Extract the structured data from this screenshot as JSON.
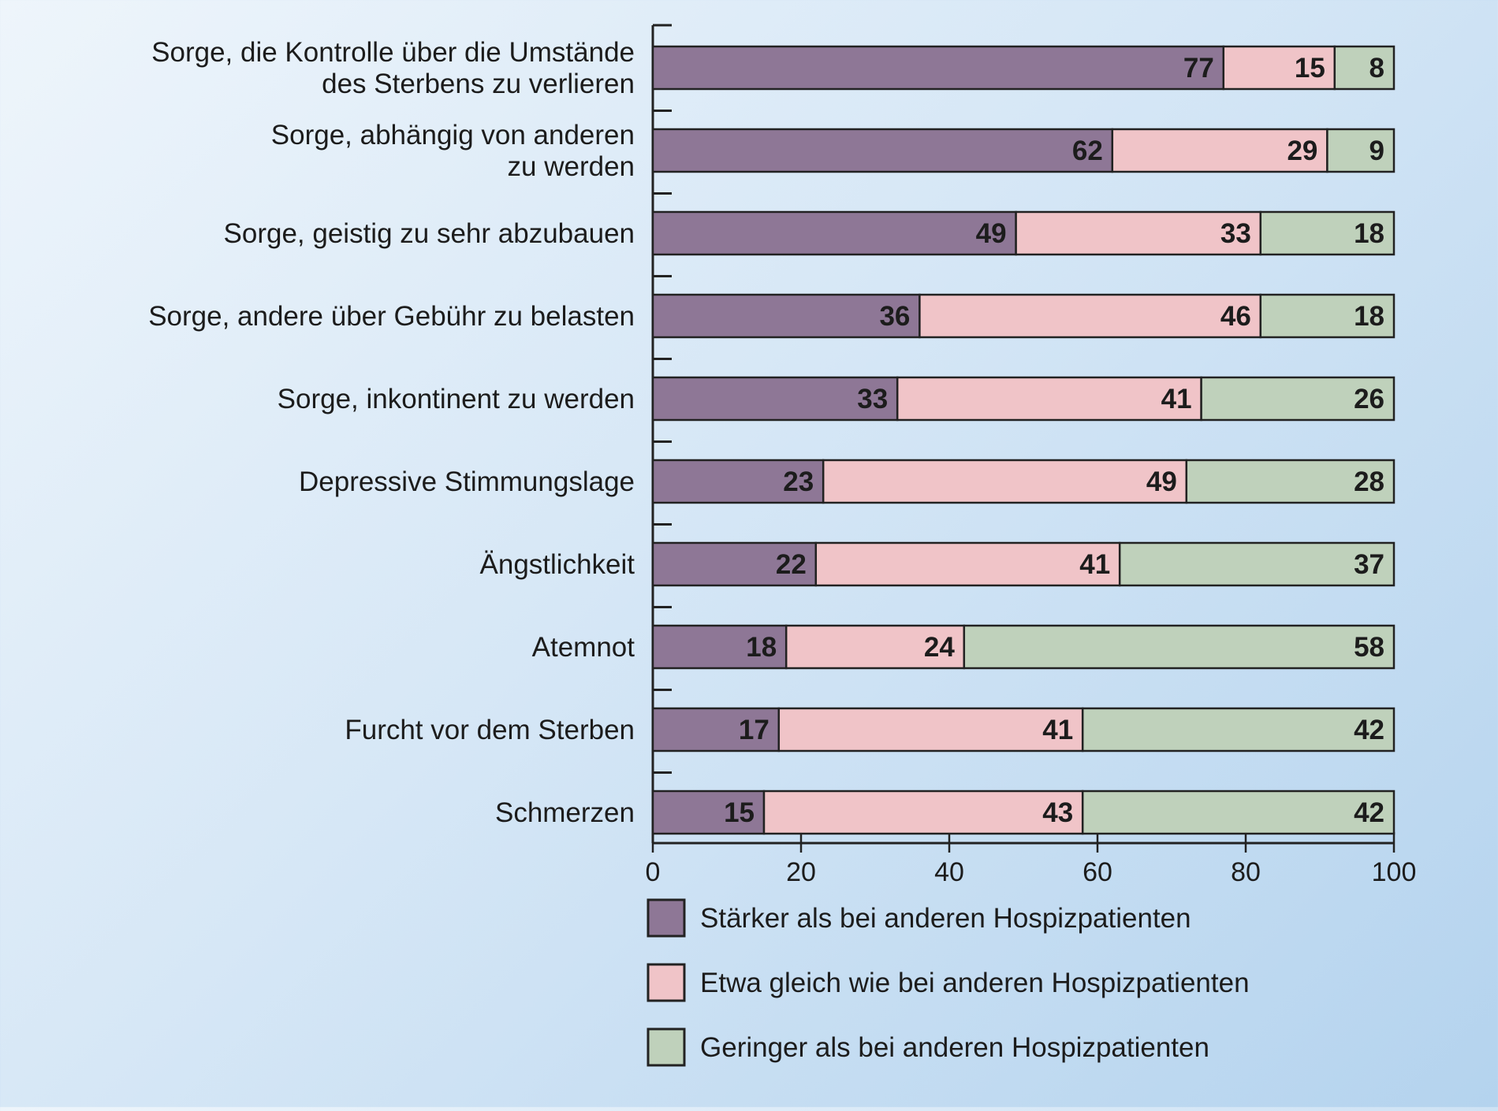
{
  "chart_data": {
    "type": "bar",
    "orientation": "horizontal",
    "stacked": true,
    "title": "",
    "xlabel": "",
    "ylabel": "",
    "xlim": [
      0,
      100
    ],
    "x_ticks": [
      "0",
      "20",
      "40",
      "60",
      "80",
      "100"
    ],
    "grid": false,
    "legend_position": "bottom",
    "categories": [
      [
        "Sorge, die Kontrolle über die Umstände",
        "des Sterbens zu verlieren"
      ],
      [
        "Sorge, abhängig von anderen",
        "zu werden"
      ],
      [
        "Sorge, geistig zu sehr abzubauen"
      ],
      [
        "Sorge, andere über Gebühr zu belasten"
      ],
      [
        "Sorge, inkontinent zu werden"
      ],
      [
        "Depressive Stimmungslage"
      ],
      [
        "Ängstlichkeit"
      ],
      [
        "Atemnot"
      ],
      [
        "Furcht vor dem Sterben"
      ],
      [
        "Schmerzen"
      ]
    ],
    "series": [
      {
        "name": "Stärker als bei anderen Hospizpatienten",
        "color": "#8e7796",
        "values": [
          77,
          62,
          49,
          36,
          33,
          23,
          22,
          18,
          17,
          15
        ]
      },
      {
        "name": "Etwa gleich wie bei anderen Hospizpatienten",
        "color": "#f0c4c8",
        "values": [
          15,
          29,
          33,
          46,
          41,
          49,
          41,
          24,
          41,
          43
        ]
      },
      {
        "name": "Geringer als bei anderen Hospizpatienten",
        "color": "#bfd1bb",
        "values": [
          8,
          9,
          18,
          18,
          26,
          28,
          37,
          58,
          42,
          42
        ]
      }
    ]
  }
}
